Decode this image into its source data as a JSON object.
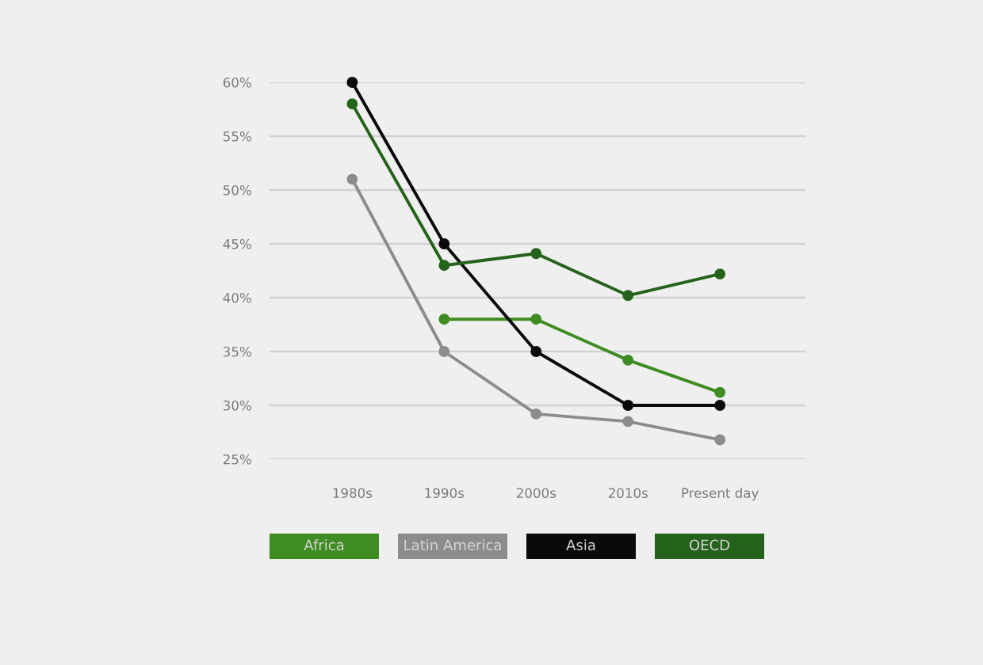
{
  "chart_data": {
    "type": "line",
    "categories": [
      "1980s",
      "1990s",
      "2000s",
      "2010s",
      "Present day"
    ],
    "series": [
      {
        "name": "Africa",
        "color": "#3e8c22",
        "values": [
          null,
          38,
          38,
          34.2,
          31.2
        ]
      },
      {
        "name": "Latin America",
        "color": "#8c8c8c",
        "values": [
          51,
          35,
          29.2,
          28.5,
          26.8
        ]
      },
      {
        "name": "Asia",
        "color": "#0a0a0a",
        "values": [
          60,
          45,
          35,
          30,
          30
        ]
      },
      {
        "name": "OECD",
        "color": "#25621b",
        "values": [
          58,
          43,
          44.1,
          40.2,
          42.2
        ]
      }
    ],
    "ylim": [
      25,
      60
    ],
    "yticks": [
      {
        "value": 25,
        "label": "25%"
      },
      {
        "value": 30,
        "label": "30%"
      },
      {
        "value": 35,
        "label": "35%"
      },
      {
        "value": 40,
        "label": "40%"
      },
      {
        "value": 45,
        "label": "45%"
      },
      {
        "value": 50,
        "label": "50%"
      },
      {
        "value": 55,
        "label": "55%"
      },
      {
        "value": 60,
        "label": "60%"
      }
    ],
    "grid": "y",
    "legend": "bottom",
    "marker": "circle",
    "line_style": "solid"
  }
}
